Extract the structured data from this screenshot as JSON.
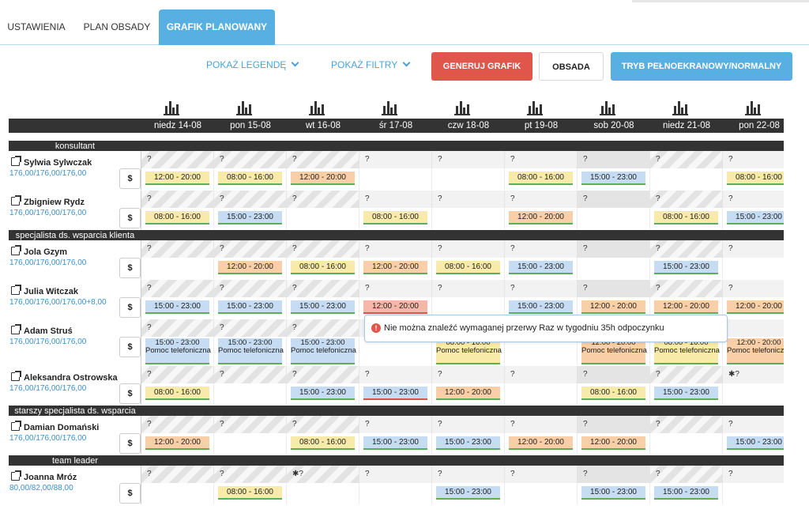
{
  "tabs": [
    {
      "label": "USTAWIENIA",
      "active": false
    },
    {
      "label": "PLAN OBSADY",
      "active": false
    },
    {
      "label": "GRAFIK PLANOWANY",
      "active": true
    }
  ],
  "toolbar": {
    "legend_label": "POKAŻ LEGENDĘ",
    "filters_label": "POKAŻ FILTRY",
    "generate_label": "GENERUJ GRAFIK",
    "staffing_label": "OBSADA",
    "fullscreen_label": "TRYB PEŁNOEKRANOWY/NORMALNY"
  },
  "colors": {
    "accent": "#58b0e2",
    "danger": "#e0564a",
    "header": "#333333"
  },
  "days": [
    {
      "label": "niedz 14-08",
      "weekend": true
    },
    {
      "label": "pon 15-08",
      "weekend": false
    },
    {
      "label": "wt 16-08",
      "weekend": false
    },
    {
      "label": "śr 17-08",
      "weekend": false
    },
    {
      "label": "czw 18-08",
      "weekend": false
    },
    {
      "label": "pt 19-08",
      "weekend": false
    },
    {
      "label": "sob 20-08",
      "weekend": true
    },
    {
      "label": "niedz 21-08",
      "weekend": true
    },
    {
      "label": "pon 22-08",
      "weekend": false
    }
  ],
  "dollar_label": "$",
  "groups": [
    {
      "name": "konsultant",
      "employees": [
        {
          "name": "Sylwia Sylwczak",
          "hours": "176,00/176,00/176,00",
          "marks": [
            "?",
            "?",
            "?",
            "?",
            "?",
            "?",
            "?",
            "?",
            "?"
          ],
          "shifts": [
            [
              "12:00 - 20:00",
              "yellow"
            ],
            [
              "08:00 - 16:00",
              "yellow"
            ],
            [
              "12:00 - 20:00",
              "orange"
            ],
            null,
            null,
            [
              "08:00 - 16:00",
              "yellow"
            ],
            [
              "15:00 - 23:00",
              "blue"
            ],
            null,
            [
              "08:00 - 16:00",
              "yellow"
            ]
          ]
        },
        {
          "name": "Zbigniew Rydz",
          "hours": "176,00/176,00/176,00",
          "marks": [
            "?",
            "?",
            "?",
            "?",
            "?",
            "?",
            "?",
            "?",
            "?"
          ],
          "shifts": [
            [
              "08:00 - 16:00",
              "yellow"
            ],
            [
              "15:00 - 23:00",
              "blue"
            ],
            null,
            [
              "08:00 - 16:00",
              "yellow"
            ],
            null,
            [
              "12:00 - 20:00",
              "orange"
            ],
            null,
            [
              "08:00 - 16:00",
              "yellow"
            ],
            [
              "15:00 - 23:00",
              "blue"
            ]
          ]
        }
      ]
    },
    {
      "name": "specjalista ds. wsparcia klienta",
      "employees": [
        {
          "name": "Jola Gzym",
          "hours": "176,00/176,00/176,00",
          "marks": [
            "?",
            "?",
            "?",
            "?",
            "?",
            "?",
            "?",
            "?",
            "?"
          ],
          "shifts": [
            null,
            [
              "12:00 - 20:00",
              "orange"
            ],
            [
              "08:00 - 16:00",
              "yellow"
            ],
            [
              "12:00 - 20:00",
              "orange"
            ],
            [
              "08:00 - 16:00",
              "yellow"
            ],
            [
              "15:00 - 23:00",
              "blue"
            ],
            null,
            [
              "15:00 - 23:00",
              "blue"
            ],
            null
          ]
        },
        {
          "name": "Julia Witczak",
          "hours": "176,00/176,00/176,00+8,00",
          "marks": [
            "?",
            "?",
            "?",
            "?",
            "?",
            "?",
            "?",
            "?",
            "?"
          ],
          "shifts": [
            [
              "15:00 - 23:00",
              "blue"
            ],
            [
              "15:00 - 23:00",
              "blue"
            ],
            [
              "15:00 - 23:00",
              "blue"
            ],
            [
              "12:00 - 20:00",
              "red"
            ],
            null,
            [
              "15:00 - 23:00",
              "blue"
            ],
            [
              "12:00 - 20:00",
              "orange"
            ],
            [
              "12:00 - 20:00",
              "orange"
            ],
            [
              "12:00 - 20:00",
              "orange"
            ]
          ]
        },
        {
          "name": "Adam Struś",
          "hours": "176,00/176,00/176,00",
          "tall": true,
          "marks": [
            "?",
            "?",
            "?",
            "",
            "",
            "",
            "",
            "",
            ""
          ],
          "shifts": [
            [
              "15:00 - 23:00",
              "blue",
              "Pomoc telefoniczna"
            ],
            [
              "15:00 - 23:00",
              "blue",
              "Pomoc telefoniczna"
            ],
            [
              "15:00 - 23:00",
              "blue",
              "Pomoc telefoniczna"
            ],
            null,
            [
              "08:00 - 16:00",
              "yellow",
              "Pomoc telefoniczna"
            ],
            null,
            [
              "12:00 - 20:00",
              "orange",
              "Pomoc telefoniczna"
            ],
            [
              "08:00 - 16:00",
              "yellow",
              "Pomoc telefoniczna"
            ],
            [
              "12:00 - 20:00",
              "orange",
              "Pomoc telefoniczna"
            ]
          ]
        },
        {
          "name": "Aleksandra Ostrowska",
          "hours": "176,00/176,00/176,00",
          "marks": [
            "?",
            "?",
            "?",
            "?",
            "?",
            "?",
            "?",
            "?",
            "✱?"
          ],
          "shifts": [
            [
              "08:00 - 16:00",
              "yellow"
            ],
            null,
            [
              "15:00 - 23:00",
              "blue"
            ],
            [
              "15:00 - 23:00",
              "blue-red"
            ],
            [
              "12:00 - 20:00",
              "orange"
            ],
            null,
            [
              "08:00 - 16:00",
              "yellow"
            ],
            [
              "15:00 - 23:00",
              "blue"
            ],
            null
          ]
        }
      ]
    },
    {
      "name": "starszy specjalista ds. wsparcia klienta",
      "employees": [
        {
          "name": "Damian Domański",
          "hours": "176,00/176,00/176,00",
          "marks": [
            "?",
            "?",
            "?",
            "?",
            "?",
            "?",
            "?",
            "?",
            "?"
          ],
          "shifts": [
            [
              "12:00 - 20:00",
              "orange"
            ],
            null,
            [
              "08:00 - 16:00",
              "yellow"
            ],
            [
              "15:00 - 23:00",
              "blue"
            ],
            [
              "15:00 - 23:00",
              "blue"
            ],
            [
              "12:00 - 20:00",
              "orange"
            ],
            [
              "12:00 - 20:00",
              "orange"
            ],
            null,
            [
              "15:00 - 23:00",
              "blue"
            ]
          ]
        }
      ]
    },
    {
      "name": "team leader",
      "employees": [
        {
          "name": "Joanna Mróz",
          "hours": "80,00/82,00/88,00",
          "marks": [
            "?",
            "?",
            "✱?",
            "?",
            "?",
            "?",
            "?",
            "?",
            "?"
          ],
          "shifts": [
            null,
            [
              "08:00 - 16:00",
              "yellow"
            ],
            null,
            null,
            [
              "15:00 - 23:00",
              "blue"
            ],
            null,
            [
              "15:00 - 23:00",
              "blue"
            ],
            [
              "15:00 - 23:00",
              "blue"
            ],
            null
          ]
        }
      ]
    }
  ],
  "tooltip": {
    "text": "Nie można znaleźć wymaganej przerwy Raz w tygodniu 35h odpoczynku",
    "icon": "warning-icon"
  }
}
